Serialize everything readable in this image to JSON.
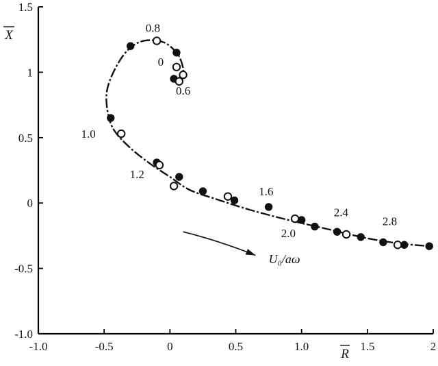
{
  "chart_data": {
    "type": "scatter",
    "title": "",
    "xlabel": "R",
    "ylabel": "X",
    "xlim": [
      -1.0,
      2.0
    ],
    "ylim": [
      -1.0,
      1.5
    ],
    "xticks": [
      -1.0,
      -0.5,
      0,
      0.5,
      1.0,
      1.5,
      2
    ],
    "xtick_labels": [
      "-1.0",
      "-0.5",
      "0",
      "0.5",
      "1.0",
      "1.5",
      "2"
    ],
    "yticks": [
      -1.0,
      -0.5,
      0,
      0.5,
      1,
      1.5
    ],
    "ytick_labels": [
      "-1.0",
      "-0.5",
      "0",
      "0.5",
      "1",
      "1.5"
    ],
    "grid": false,
    "series": [
      {
        "marker": "filled-circle",
        "x": [
          0.03,
          0.05,
          -0.3,
          -0.45,
          -0.1,
          0.07,
          0.25,
          0.49,
          0.75,
          1.0,
          1.1,
          1.27,
          1.45,
          1.62,
          1.78,
          1.97
        ],
        "y": [
          0.95,
          1.15,
          1.2,
          0.65,
          0.31,
          0.2,
          0.09,
          0.02,
          -0.03,
          -0.13,
          -0.18,
          -0.22,
          -0.26,
          -0.3,
          -0.32,
          -0.33
        ]
      },
      {
        "marker": "open-circle",
        "x": [
          -0.1,
          0.05,
          0.1,
          0.07,
          -0.37,
          -0.08,
          0.03,
          0.44,
          0.95,
          1.34,
          1.73
        ],
        "y": [
          1.24,
          1.04,
          0.98,
          0.93,
          0.53,
          0.29,
          0.13,
          0.05,
          -0.12,
          -0.24,
          -0.32
        ]
      }
    ],
    "curve": {
      "x": [
        0.07,
        0.1,
        0.09,
        0.05,
        -0.05,
        -0.2,
        -0.32,
        -0.42,
        -0.48,
        -0.47,
        -0.42,
        -0.3,
        -0.15,
        0.0,
        0.15,
        0.35,
        0.6,
        0.9,
        1.2,
        1.5,
        1.75,
        1.97
      ],
      "y": [
        0.92,
        0.99,
        1.07,
        1.15,
        1.23,
        1.24,
        1.17,
        1.02,
        0.85,
        0.68,
        0.55,
        0.42,
        0.3,
        0.2,
        0.1,
        0.03,
        -0.05,
        -0.13,
        -0.2,
        -0.27,
        -0.31,
        -0.33
      ]
    },
    "annotations": [
      {
        "text": "0.8",
        "x": -0.13,
        "y": 1.31
      },
      {
        "text": "0",
        "x": -0.07,
        "y": 1.05
      },
      {
        "text": "0.6",
        "x": 0.1,
        "y": 0.83
      },
      {
        "text": "1.0",
        "x": -0.62,
        "y": 0.5
      },
      {
        "text": "1.2",
        "x": -0.25,
        "y": 0.19
      },
      {
        "text": "1.6",
        "x": 0.73,
        "y": 0.06
      },
      {
        "text": "2.0",
        "x": 0.9,
        "y": -0.26
      },
      {
        "text": "2.4",
        "x": 1.3,
        "y": -0.1
      },
      {
        "text": "2.8",
        "x": 1.67,
        "y": -0.17
      }
    ],
    "arrow": {
      "label": "U₀/aω",
      "from": [
        0.1,
        -0.22
      ],
      "to": [
        0.65,
        -0.4
      ],
      "label_at": [
        0.75,
        -0.46
      ]
    }
  }
}
